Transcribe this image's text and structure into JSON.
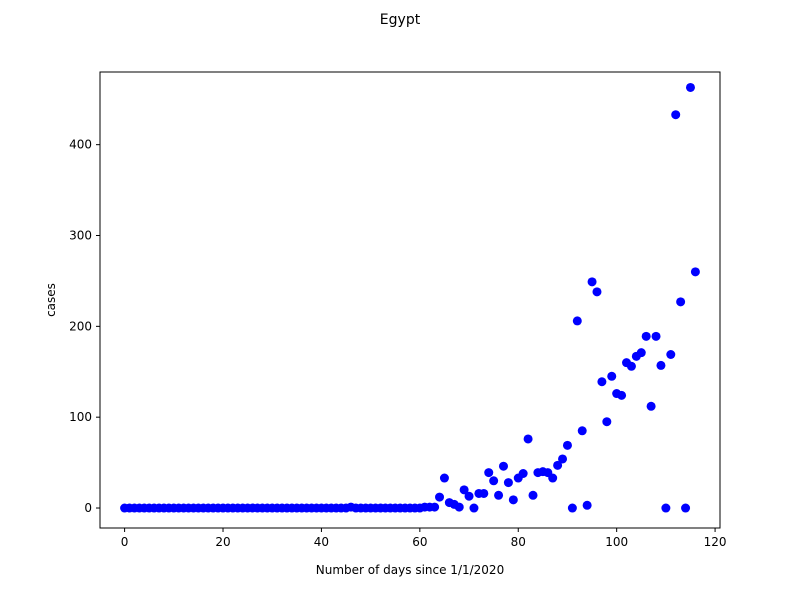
{
  "chart_data": {
    "type": "scatter",
    "title": "Egypt",
    "xlabel": "Number of days since 1/1/2020",
    "ylabel": "cases",
    "xlim": [
      -5,
      121
    ],
    "ylim": [
      -22,
      480
    ],
    "xticks": [
      0,
      20,
      40,
      60,
      80,
      100,
      120
    ],
    "yticks": [
      0,
      100,
      200,
      300,
      400
    ],
    "grid": false,
    "marker_color": "#0000ff",
    "x": [
      0,
      1,
      2,
      3,
      4,
      5,
      6,
      7,
      8,
      9,
      10,
      11,
      12,
      13,
      14,
      15,
      16,
      17,
      18,
      19,
      20,
      21,
      22,
      23,
      24,
      25,
      26,
      27,
      28,
      29,
      30,
      31,
      32,
      33,
      34,
      35,
      36,
      37,
      38,
      39,
      40,
      41,
      42,
      43,
      44,
      45,
      46,
      47,
      48,
      49,
      50,
      51,
      52,
      53,
      54,
      55,
      56,
      57,
      58,
      59,
      60,
      61,
      62,
      63,
      64,
      65,
      66,
      67,
      68,
      69,
      70,
      71,
      72,
      73,
      74,
      75,
      76,
      77,
      78,
      79,
      80,
      81,
      82,
      83,
      84,
      85,
      86,
      87,
      88,
      89,
      90,
      91,
      92,
      93,
      94,
      95,
      96,
      97,
      98,
      99,
      100,
      101,
      102,
      103,
      104,
      105,
      106,
      107,
      108,
      109,
      110,
      111,
      112,
      113,
      114,
      115,
      116
    ],
    "y": [
      0,
      0,
      0,
      0,
      0,
      0,
      0,
      0,
      0,
      0,
      0,
      0,
      0,
      0,
      0,
      0,
      0,
      0,
      0,
      0,
      0,
      0,
      0,
      0,
      0,
      0,
      0,
      0,
      0,
      0,
      0,
      0,
      0,
      0,
      0,
      0,
      0,
      0,
      0,
      0,
      0,
      0,
      0,
      0,
      0,
      0,
      1,
      0,
      0,
      0,
      0,
      0,
      0,
      0,
      0,
      0,
      0,
      0,
      0,
      0,
      0,
      1,
      1,
      1,
      12,
      33,
      6,
      4,
      1,
      20,
      13,
      0,
      16,
      16,
      39,
      30,
      14,
      46,
      28,
      9,
      33,
      38,
      76,
      14,
      39,
      40,
      39,
      33,
      47,
      54,
      69,
      0,
      206,
      85,
      3,
      249,
      238,
      139,
      95,
      145,
      126,
      124,
      160,
      156,
      167,
      171,
      189,
      112,
      189,
      157,
      0,
      169,
      433,
      227,
      0,
      463,
      260
    ]
  }
}
